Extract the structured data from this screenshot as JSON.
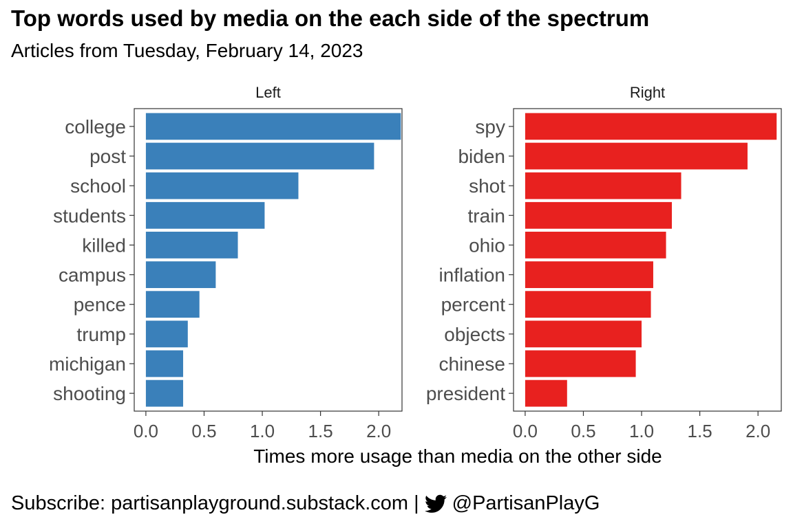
{
  "header": {
    "title": "Top words used by media on the each side of the spectrum",
    "subtitle": "Articles from Tuesday, February 14, 2023"
  },
  "caption": {
    "subscribe": "Subscribe: partisanplayground.substack.com",
    "separator": "|",
    "icon": "twitter-bird-icon",
    "handle": "@PartisanPlayG"
  },
  "colors": {
    "left": "#3A80BA",
    "right": "#E8211F"
  },
  "chart_data": {
    "type": "bar",
    "orientation": "horizontal",
    "xlabel": "Times more usage than media on the other side",
    "xlim": [
      -0.1,
      2.2
    ],
    "xticks": [
      0.0,
      0.5,
      1.0,
      1.5,
      2.0
    ],
    "xtick_labels": [
      "0.0",
      "0.5",
      "1.0",
      "1.5",
      "2.0"
    ],
    "panels": [
      {
        "name": "Left",
        "categories": [
          "college",
          "post",
          "school",
          "students",
          "killed",
          "campus",
          "pence",
          "trump",
          "michigan",
          "shooting"
        ],
        "values": [
          2.19,
          1.96,
          1.31,
          1.02,
          0.79,
          0.6,
          0.46,
          0.36,
          0.32,
          0.32
        ]
      },
      {
        "name": "Right",
        "categories": [
          "spy",
          "biden",
          "shot",
          "train",
          "ohio",
          "inflation",
          "percent",
          "objects",
          "chinese",
          "president"
        ],
        "values": [
          2.16,
          1.91,
          1.34,
          1.26,
          1.21,
          1.1,
          1.08,
          1.0,
          0.95,
          0.36
        ]
      }
    ]
  }
}
